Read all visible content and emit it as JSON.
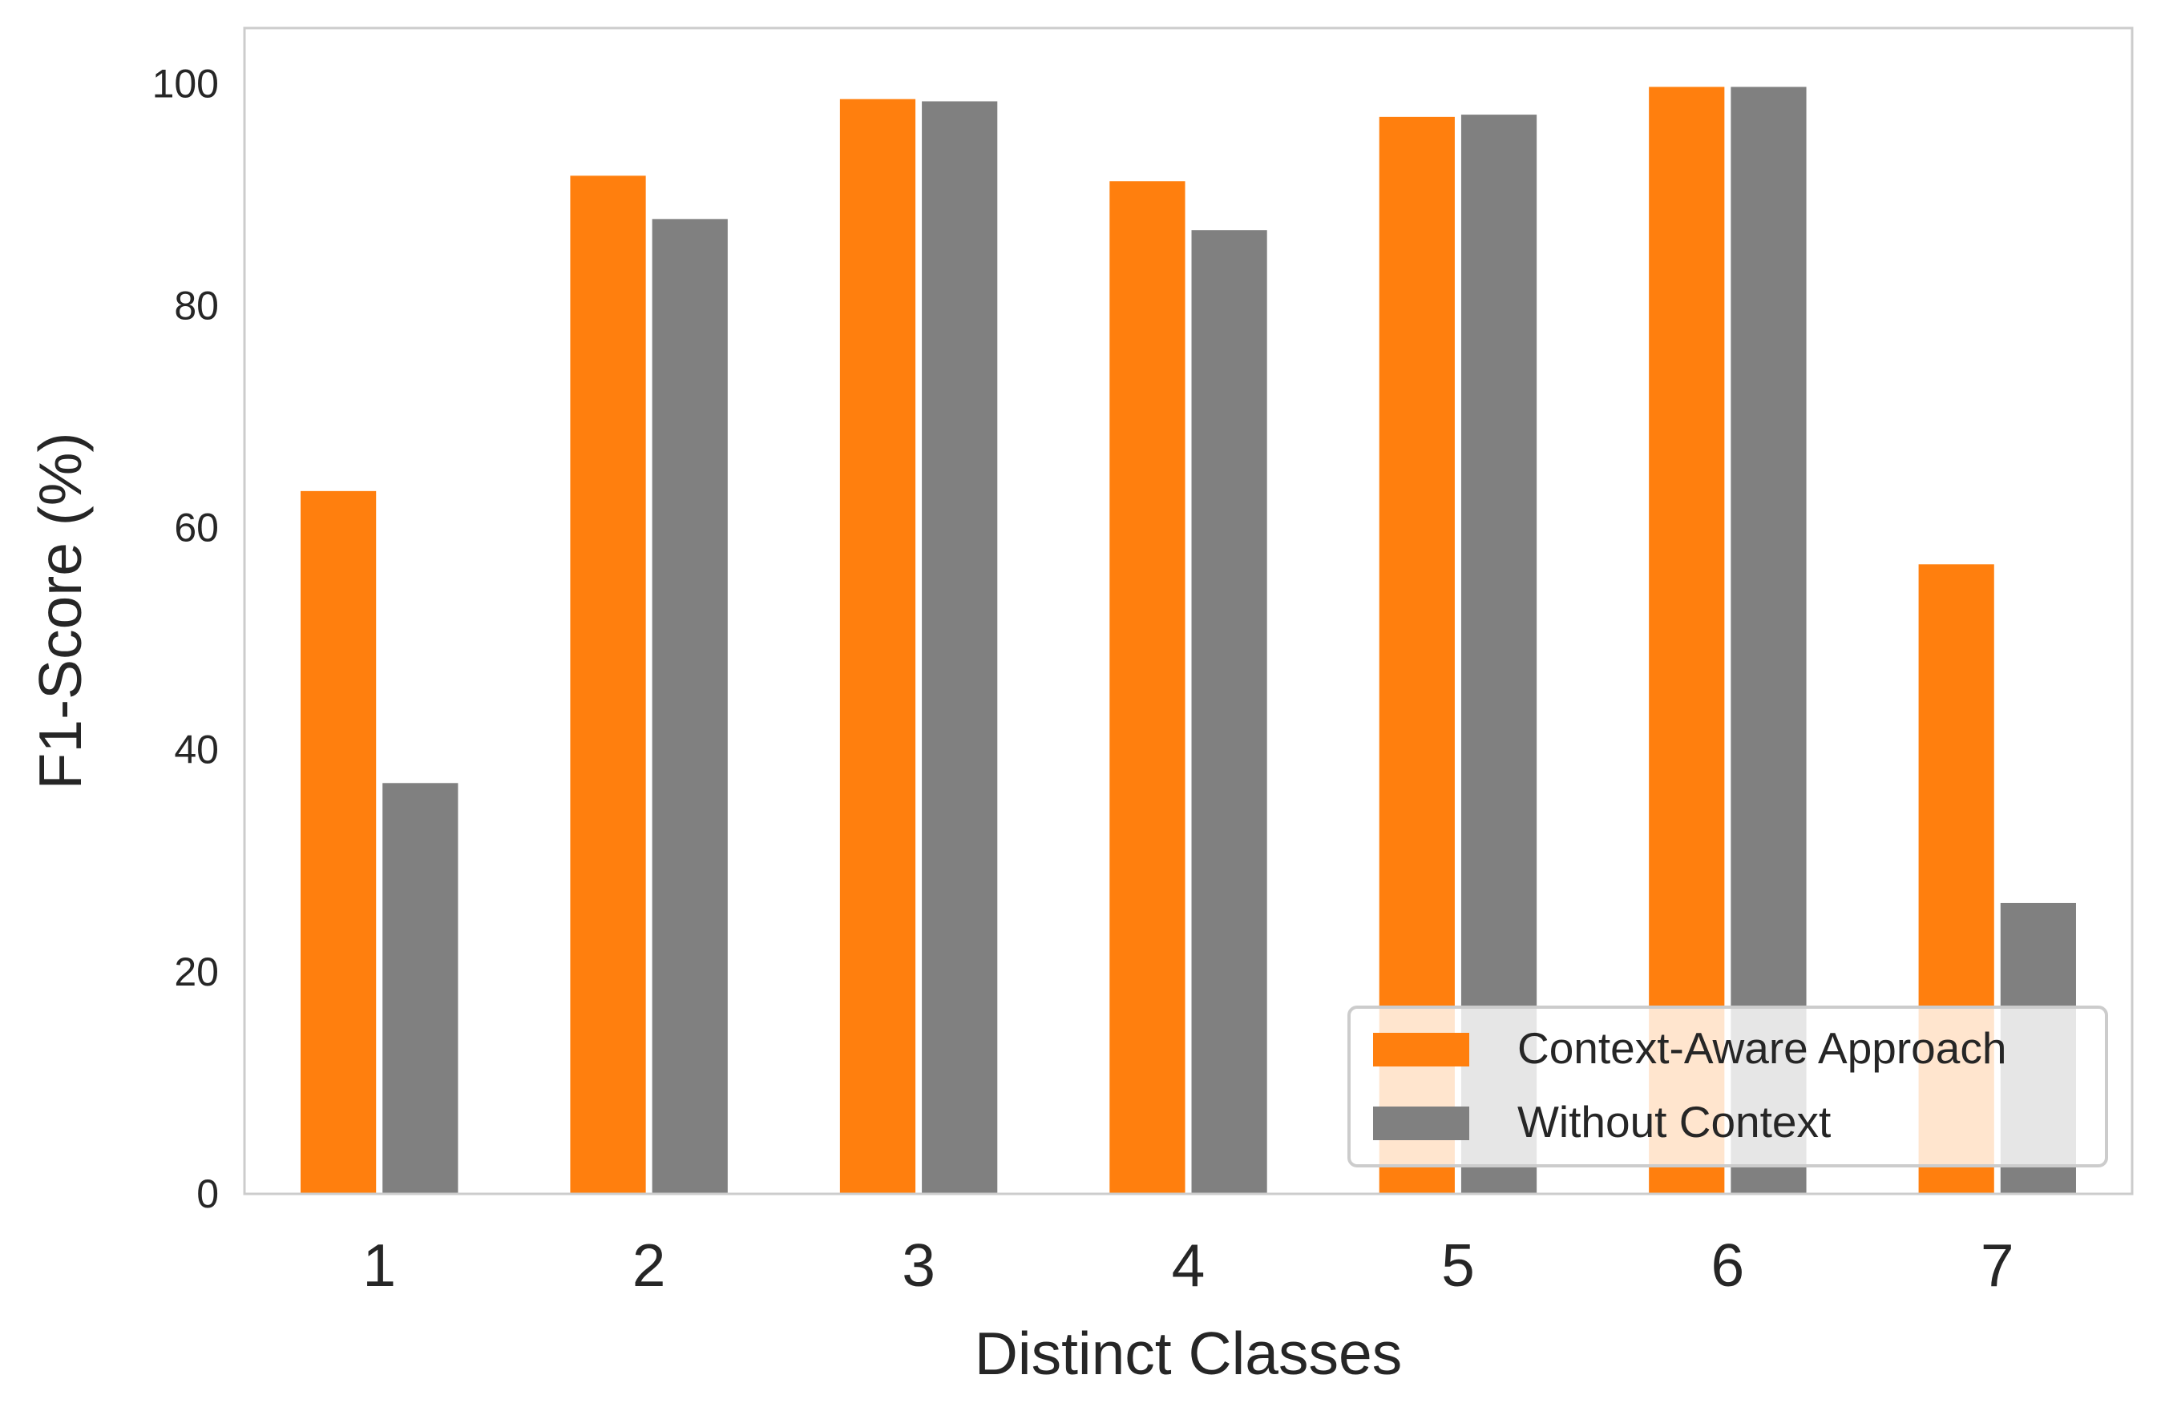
{
  "chart_data": {
    "type": "bar",
    "title": "",
    "xlabel": "Distinct Classes",
    "ylabel": "F1-Score (%)",
    "categories": [
      "1",
      "2",
      "3",
      "4",
      "5",
      "6",
      "7"
    ],
    "ylim": [
      0,
      105
    ],
    "yticks": [
      0,
      20,
      40,
      60,
      80,
      100
    ],
    "grid": false,
    "legend_position": "lower-right",
    "series": [
      {
        "name": "Context-Aware Approach",
        "color": "#ff7f0e",
        "values": [
          63.3,
          91.7,
          98.6,
          91.2,
          97.0,
          99.7,
          56.7
        ]
      },
      {
        "name": "Without Context",
        "color": "#808080",
        "values": [
          37.0,
          87.8,
          98.4,
          86.8,
          97.2,
          99.7,
          26.2
        ]
      }
    ]
  }
}
